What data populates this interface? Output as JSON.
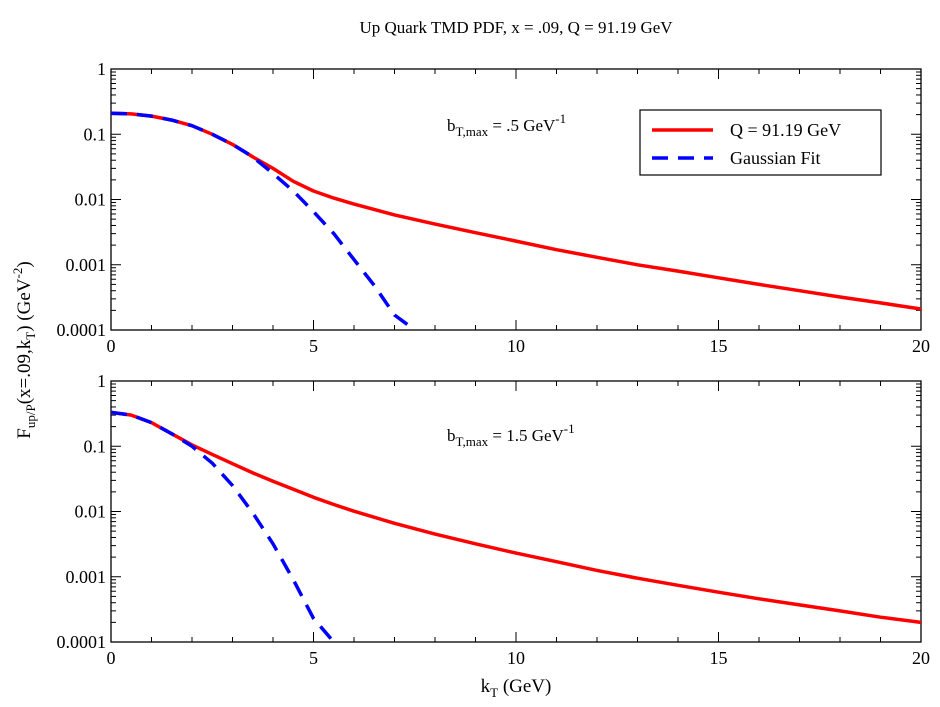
{
  "chart_data": {
    "type": "line",
    "title": "Up Quark TMD PDF, x = .09, Q = 91.19 GeV",
    "ylabel": {
      "main": "F",
      "sub1": "up/P",
      "mid": "(x=.09,k",
      "sub2": "T",
      "tail": ") (GeV",
      "sup": "-2",
      "close": ")"
    },
    "xlabel": {
      "main": "k",
      "sub": "T",
      "tail": " (GeV)"
    },
    "xlim": [
      0,
      20
    ],
    "ylim": [
      0.0001,
      1
    ],
    "yscale": "log",
    "x_ticks": [
      0,
      5,
      10,
      15,
      20
    ],
    "x_tick_labels": [
      "0",
      "5",
      "10",
      "15",
      "20"
    ],
    "y_ticks": [
      0.0001,
      0.001,
      0.01,
      0.1,
      1
    ],
    "y_tick_labels": [
      "0.0001",
      "0.001",
      "0.01",
      "0.1",
      "1"
    ],
    "legend": {
      "placement": "top-right of upper panel",
      "entries": [
        {
          "label": "Q = 91.19 GeV",
          "color": "#ff0000",
          "style": "solid"
        },
        {
          "label": "Gaussian Fit",
          "color": "#0000ff",
          "style": "dashed"
        }
      ]
    },
    "panels": [
      {
        "annotation": {
          "main": "b",
          "sub": "T,max",
          "mid": " = .5 GeV",
          "sup": "-1"
        },
        "series": [
          {
            "name": "Q = 91.19 GeV",
            "color": "#ff0000",
            "style": "solid",
            "x": [
              0,
              0.5,
              1,
              1.5,
              2,
              2.5,
              3,
              3.5,
              4,
              4.5,
              5,
              5.5,
              6,
              7,
              8,
              9,
              10,
              11,
              12,
              13,
              14,
              15,
              16,
              17,
              18,
              19,
              20
            ],
            "y": [
              0.21,
              0.205,
              0.19,
              0.165,
              0.135,
              0.1,
              0.07,
              0.045,
              0.03,
              0.019,
              0.0135,
              0.0105,
              0.0085,
              0.0058,
              0.0042,
              0.0031,
              0.0023,
              0.0017,
              0.0013,
              0.001,
              0.0008,
              0.00063,
              0.0005,
              0.0004,
              0.00032,
              0.00026,
              0.00021
            ]
          },
          {
            "name": "Gaussian Fit",
            "color": "#0000ff",
            "style": "dashed",
            "x": [
              0,
              0.5,
              1,
              1.5,
              2,
              2.5,
              3,
              3.5,
              4,
              4.5,
              5,
              5.5,
              6,
              6.5,
              7,
              7.5
            ],
            "y": [
              0.21,
              0.205,
              0.19,
              0.165,
              0.135,
              0.1,
              0.07,
              0.045,
              0.025,
              0.0135,
              0.0065,
              0.003,
              0.0012,
              0.00048,
              0.00017,
              0.0001
            ]
          }
        ]
      },
      {
        "annotation": {
          "main": "b",
          "sub": "T,max",
          "mid": " = 1.5 GeV",
          "sup": "-1"
        },
        "series": [
          {
            "name": "Q = 91.19 GeV",
            "color": "#ff0000",
            "style": "solid",
            "x": [
              0,
              0.5,
              1,
              1.5,
              2,
              2.5,
              3,
              3.5,
              4,
              4.5,
              5,
              5.5,
              6,
              7,
              8,
              9,
              10,
              11,
              12,
              13,
              14,
              15,
              16,
              17,
              18,
              19,
              20
            ],
            "y": [
              0.33,
              0.3,
              0.23,
              0.155,
              0.105,
              0.075,
              0.054,
              0.039,
              0.029,
              0.022,
              0.0165,
              0.0128,
              0.0101,
              0.0066,
              0.0045,
              0.0032,
              0.0023,
              0.0017,
              0.00125,
              0.00095,
              0.00074,
              0.00058,
              0.00046,
              0.00037,
              0.0003,
              0.00024,
              0.0002
            ]
          },
          {
            "name": "Gaussian Fit",
            "color": "#0000ff",
            "style": "dashed",
            "x": [
              0,
              0.5,
              1,
              1.5,
              2,
              2.5,
              3,
              3.5,
              4,
              4.5,
              5,
              5.5
            ],
            "y": [
              0.33,
              0.3,
              0.23,
              0.155,
              0.1,
              0.055,
              0.025,
              0.0095,
              0.0032,
              0.0009,
              0.00023,
              0.0001
            ]
          }
        ]
      }
    ]
  }
}
